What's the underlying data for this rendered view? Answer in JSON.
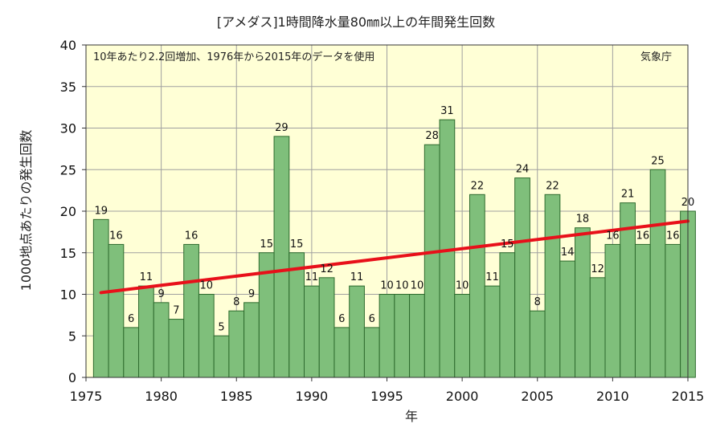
{
  "chart_data": {
    "type": "bar",
    "title": "[アメダス]1時間降水量80㎜以上の年間発生回数",
    "xlabel": "年",
    "ylabel": "1000地点あたりの発生回数",
    "annotation": "10年あたり2.2回増加、1976年から2015年のデータを使用",
    "source": "気象庁",
    "ylim": [
      0,
      40
    ],
    "xlim": [
      1975,
      2015
    ],
    "y_ticks": [
      0,
      5,
      10,
      15,
      20,
      25,
      30,
      35,
      40
    ],
    "x_ticks": [
      1975,
      1980,
      1985,
      1990,
      1995,
      2000,
      2005,
      2010,
      2015
    ],
    "grid": true,
    "categories": [
      "1976",
      "1977",
      "1978",
      "1979",
      "1980",
      "1981",
      "1982",
      "1983",
      "1984",
      "1985",
      "1986",
      "1987",
      "1988",
      "1989",
      "1990",
      "1991",
      "1992",
      "1993",
      "1994",
      "1995",
      "1996",
      "1997",
      "1998",
      "1999",
      "2000",
      "2001",
      "2002",
      "2003",
      "2004",
      "2005",
      "2006",
      "2007",
      "2008",
      "2009",
      "2010",
      "2011",
      "2012",
      "2013",
      "2014",
      "2015"
    ],
    "values": [
      19,
      16,
      6,
      11,
      9,
      7,
      16,
      10,
      5,
      8,
      9,
      15,
      29,
      15,
      11,
      12,
      6,
      11,
      6,
      10,
      10,
      10,
      28,
      31,
      10,
      22,
      11,
      15,
      24,
      8,
      22,
      14,
      18,
      12,
      16,
      21,
      16,
      25,
      16,
      20
    ],
    "trend": {
      "start": [
        1976,
        10.2
      ],
      "end": [
        2015,
        18.8
      ],
      "color": "#e8101a"
    },
    "colors": {
      "bar": "#7fbf7b",
      "bar_edge": "#2e6b2e",
      "plot_bg": "#ffffd6",
      "grid": "#a0a0a0",
      "trend": "#e8101a"
    }
  }
}
